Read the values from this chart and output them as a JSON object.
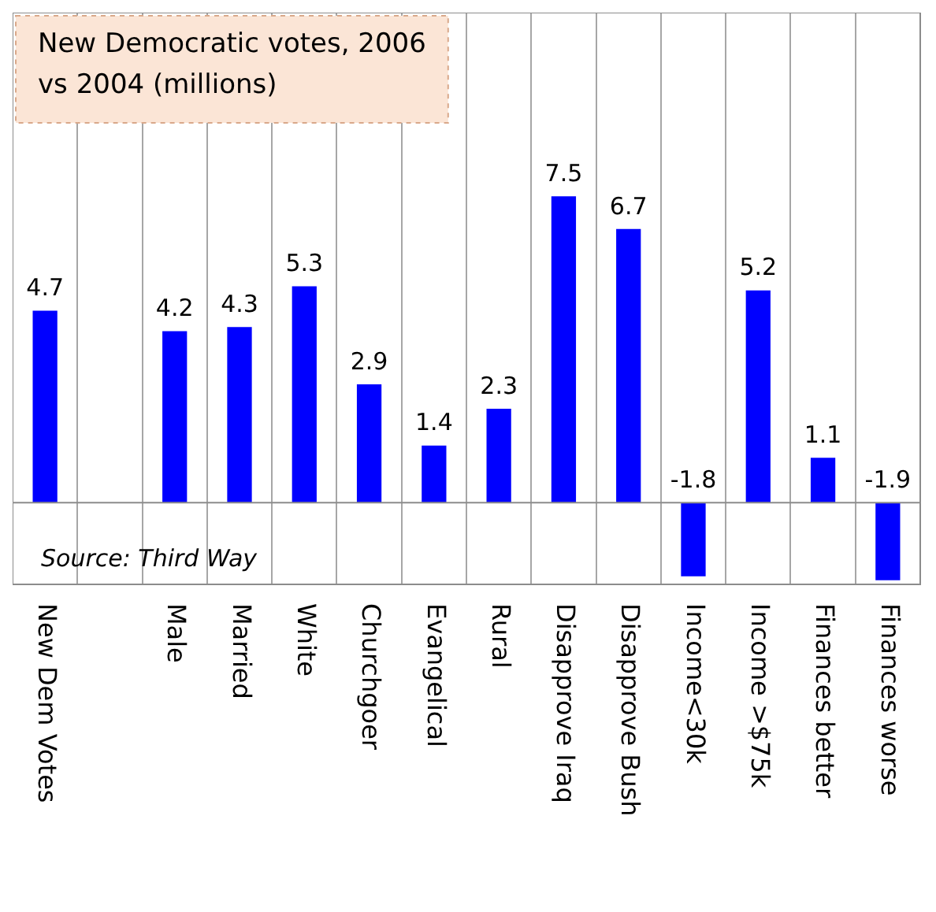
{
  "chart_data": {
    "type": "bar",
    "title": "New Democratic votes, 2006 vs 2004 (millions)",
    "categories": [
      "New Dem Votes",
      null,
      "Male",
      "Married",
      "White",
      "Churchgoer",
      "Evangelical",
      "Rural",
      "Disapprove Iraq",
      "Disapprove Bush",
      "Income<30k",
      "Income >$75k",
      "Finances better",
      "Finances worse"
    ],
    "values": [
      4.7,
      null,
      4.2,
      4.3,
      5.3,
      2.9,
      1.4,
      2.3,
      7.5,
      6.7,
      -1.8,
      5.2,
      1.1,
      -1.9
    ],
    "color": "#0000ff",
    "data_labels": true,
    "grid": "x",
    "legend": false,
    "annotations": [
      "Source: Third Way"
    ]
  }
}
